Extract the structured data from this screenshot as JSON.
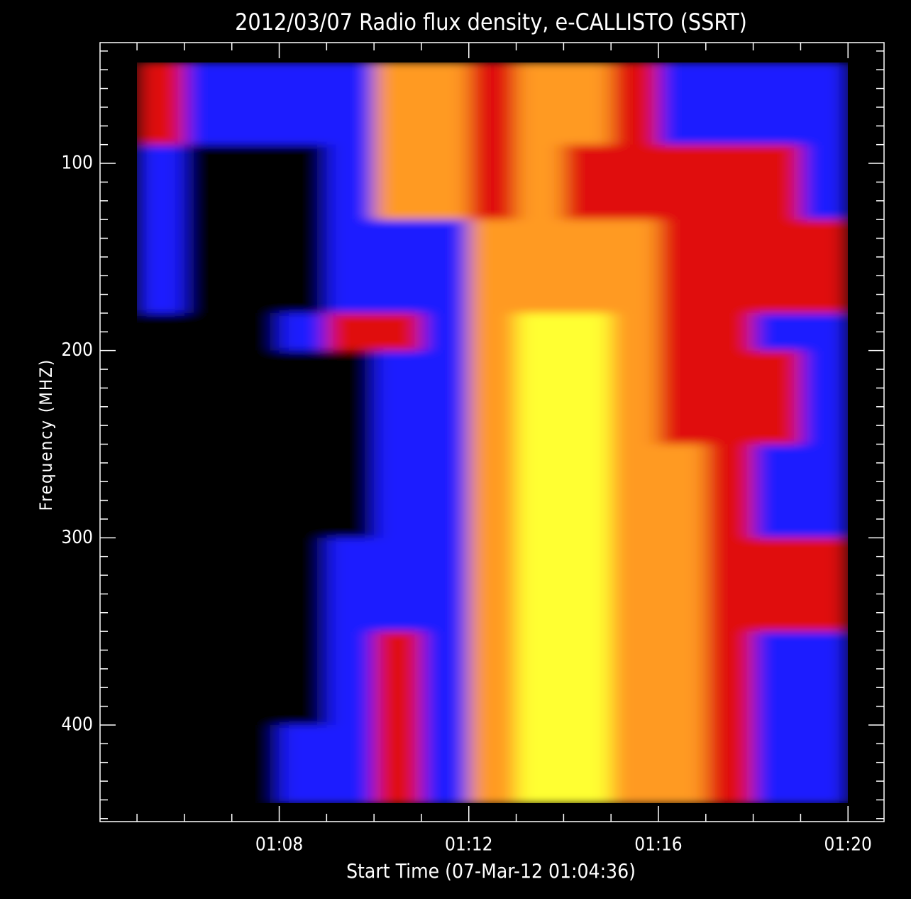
{
  "chart_data": {
    "type": "heatmap",
    "title": "2012/03/07  Radio flux density, e-CALLISTO (SSRT)",
    "x_label": "Start Time (07-Mar-12 01:04:36)",
    "y_label": "Frequency (MHZ)",
    "xlim": [
      64.22,
      80.76
    ],
    "xticks": [
      {
        "value": 68,
        "label": "01:08"
      },
      {
        "value": 72,
        "label": "01:12"
      },
      {
        "value": 76,
        "label": "01:16"
      },
      {
        "value": 80,
        "label": "01:20"
      }
    ],
    "ylim": [
      35.5,
      451.6
    ],
    "y_inverted": true,
    "yticks": [
      100,
      200,
      300,
      400
    ],
    "x_edges": [
      65,
      66,
      67,
      68,
      69,
      70,
      71,
      72,
      73,
      74,
      75,
      76,
      77,
      78,
      79,
      80
    ],
    "y_edges": [
      46,
      90,
      130,
      180,
      200,
      250,
      300,
      350,
      400,
      442
    ],
    "colors": [
      "#000000",
      "#1a1aff",
      "#e01010",
      "#ff9a20",
      "#ffff30"
    ],
    "z": [
      [
        2,
        1,
        1,
        1,
        1,
        3,
        3,
        2,
        3,
        3,
        2,
        1,
        1,
        1,
        1
      ],
      [
        1,
        0,
        0,
        0,
        1,
        3,
        3,
        2,
        3,
        2,
        2,
        2,
        2,
        2,
        1
      ],
      [
        1,
        0,
        0,
        0,
        1,
        1,
        1,
        3,
        3,
        3,
        3,
        2,
        2,
        2,
        2
      ],
      [
        0,
        0,
        0,
        1,
        2,
        2,
        1,
        3,
        4,
        4,
        3,
        2,
        2,
        1,
        1
      ],
      [
        0,
        0,
        0,
        0,
        0,
        1,
        1,
        3,
        4,
        4,
        3,
        2,
        2,
        2,
        1
      ],
      [
        0,
        0,
        0,
        0,
        0,
        1,
        1,
        3,
        4,
        4,
        3,
        3,
        2,
        1,
        1
      ],
      [
        0,
        0,
        0,
        0,
        1,
        1,
        1,
        3,
        4,
        4,
        3,
        3,
        2,
        2,
        2
      ],
      [
        0,
        0,
        0,
        0,
        1,
        2,
        1,
        3,
        4,
        4,
        3,
        3,
        2,
        1,
        1
      ],
      [
        0,
        0,
        0,
        1,
        1,
        2,
        1,
        3,
        4,
        4,
        3,
        3,
        2,
        1,
        1
      ]
    ]
  }
}
